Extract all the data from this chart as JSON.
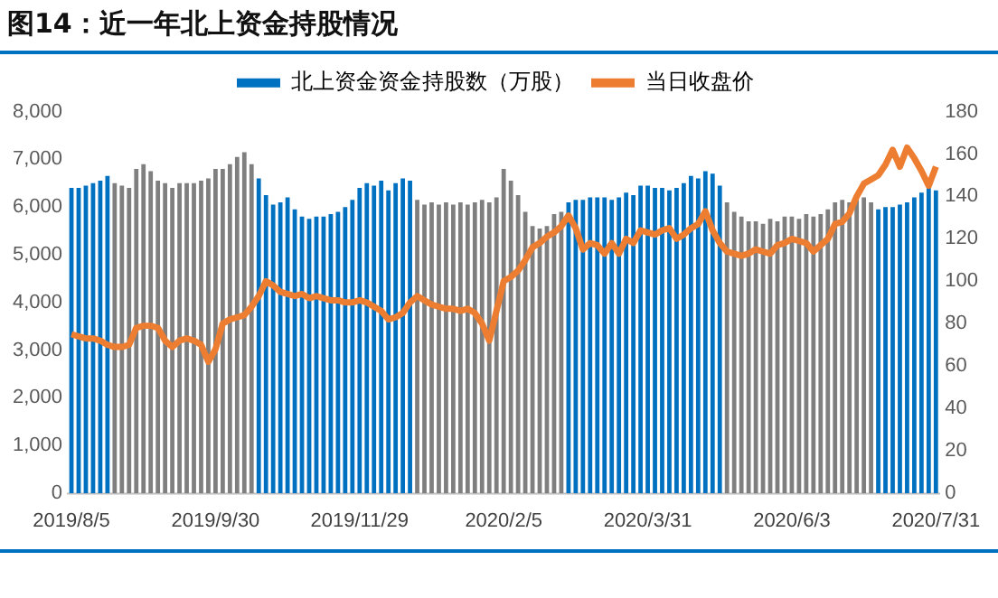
{
  "chart_data": {
    "type": "bar",
    "title": "图14：近一年北上资金持股情况",
    "categories": [
      "2019/8/5",
      null,
      null,
      null,
      null,
      null,
      null,
      null,
      null,
      null,
      null,
      null,
      null,
      null,
      null,
      null,
      null,
      null,
      null,
      null,
      "2019/9/30",
      null,
      null,
      null,
      null,
      null,
      null,
      null,
      null,
      null,
      null,
      null,
      null,
      null,
      null,
      null,
      null,
      null,
      null,
      null,
      "2019/11/29",
      null,
      null,
      null,
      null,
      null,
      null,
      null,
      null,
      null,
      null,
      null,
      null,
      null,
      null,
      null,
      null,
      null,
      null,
      null,
      "2020/2/5",
      null,
      null,
      null,
      null,
      null,
      null,
      null,
      null,
      null,
      null,
      null,
      null,
      null,
      null,
      null,
      null,
      null,
      null,
      null,
      "2020/3/31",
      null,
      null,
      null,
      null,
      null,
      null,
      null,
      null,
      null,
      null,
      null,
      null,
      null,
      null,
      null,
      null,
      null,
      null,
      null,
      "2020/6/3",
      null,
      null,
      null,
      null,
      null,
      null,
      null,
      null,
      null,
      null,
      null,
      null,
      null,
      null,
      null,
      null,
      null,
      null,
      null,
      "2020/7/31"
    ],
    "series": [
      {
        "name": "北上资金资金持股数（万股）",
        "color": "#0070c0",
        "colors": [
          "#0070c0",
          "#0070c0",
          "#0070c0",
          "#0070c0",
          "#0070c0",
          "#0070c0",
          "#7f7f7f",
          "#7f7f7f",
          "#7f7f7f",
          "#7f7f7f",
          "#7f7f7f",
          "#7f7f7f",
          "#7f7f7f",
          "#7f7f7f",
          "#7f7f7f",
          "#7f7f7f",
          "#7f7f7f",
          "#7f7f7f",
          "#7f7f7f",
          "#7f7f7f",
          "#7f7f7f",
          "#7f7f7f",
          "#7f7f7f",
          "#7f7f7f",
          "#7f7f7f",
          "#7f7f7f",
          "#0070c0",
          "#0070c0",
          "#0070c0",
          "#0070c0",
          "#0070c0",
          "#0070c0",
          "#0070c0",
          "#0070c0",
          "#0070c0",
          "#0070c0",
          "#0070c0",
          "#0070c0",
          "#0070c0",
          "#0070c0",
          "#0070c0",
          "#0070c0",
          "#0070c0",
          "#0070c0",
          "#0070c0",
          "#0070c0",
          "#0070c0",
          "#0070c0",
          "#7f7f7f",
          "#7f7f7f",
          "#7f7f7f",
          "#7f7f7f",
          "#7f7f7f",
          "#7f7f7f",
          "#7f7f7f",
          "#7f7f7f",
          "#7f7f7f",
          "#7f7f7f",
          "#7f7f7f",
          "#7f7f7f",
          "#7f7f7f",
          "#7f7f7f",
          "#7f7f7f",
          "#7f7f7f",
          "#7f7f7f",
          "#7f7f7f",
          "#7f7f7f",
          "#7f7f7f",
          "#7f7f7f",
          "#0070c0",
          "#0070c0",
          "#0070c0",
          "#0070c0",
          "#0070c0",
          "#0070c0",
          "#0070c0",
          "#0070c0",
          "#0070c0",
          "#0070c0",
          "#0070c0",
          "#0070c0",
          "#0070c0",
          "#0070c0",
          "#0070c0",
          "#0070c0",
          "#0070c0",
          "#0070c0",
          "#0070c0",
          "#0070c0",
          "#0070c0",
          "#0070c0",
          "#7f7f7f",
          "#7f7f7f",
          "#7f7f7f",
          "#7f7f7f",
          "#7f7f7f",
          "#7f7f7f",
          "#7f7f7f",
          "#7f7f7f",
          "#7f7f7f",
          "#7f7f7f",
          "#7f7f7f",
          "#7f7f7f",
          "#7f7f7f",
          "#7f7f7f",
          "#7f7f7f",
          "#7f7f7f",
          "#7f7f7f",
          "#7f7f7f",
          "#7f7f7f",
          "#7f7f7f",
          "#7f7f7f",
          "#0070c0",
          "#0070c0",
          "#0070c0",
          "#0070c0",
          "#0070c0",
          "#0070c0",
          "#0070c0",
          "#0070c0",
          "#0070c0"
        ],
        "values": [
          6400,
          6400,
          6450,
          6500,
          6550,
          6650,
          6500,
          6450,
          6400,
          6800,
          6900,
          6750,
          6550,
          6500,
          6400,
          6500,
          6500,
          6500,
          6550,
          6600,
          6800,
          6800,
          6900,
          7050,
          7150,
          6900,
          6600,
          6250,
          6050,
          6100,
          6200,
          5950,
          5800,
          5750,
          5800,
          5800,
          5850,
          5900,
          6000,
          6150,
          6400,
          6500,
          6450,
          6550,
          6350,
          6500,
          6600,
          6550,
          6150,
          6050,
          6100,
          6050,
          6100,
          6050,
          6100,
          6050,
          6100,
          6150,
          6100,
          6200,
          6800,
          6550,
          6250,
          5900,
          5600,
          5550,
          5600,
          5850,
          5900,
          6100,
          6150,
          6150,
          6200,
          6200,
          6200,
          6150,
          6200,
          6300,
          6250,
          6450,
          6450,
          6400,
          6400,
          6350,
          6400,
          6500,
          6650,
          6600,
          6750,
          6700,
          6450,
          6100,
          5900,
          5800,
          5700,
          5700,
          5650,
          5750,
          5700,
          5800,
          5800,
          5750,
          5850,
          5800,
          5850,
          5950,
          6100,
          6150,
          6100,
          6150,
          6200,
          6100,
          5950,
          6000,
          6000,
          6050,
          6100,
          6200,
          6300,
          6400,
          6350
        ]
      },
      {
        "name": "当日收盘价",
        "type": "line",
        "axis": "y2",
        "color": "#ed7d31",
        "values": [
          75,
          74,
          73,
          73,
          72,
          70,
          69,
          69,
          70,
          78,
          79,
          79,
          78,
          72,
          69,
          72,
          73,
          72,
          70,
          62,
          68,
          80,
          82,
          83,
          84,
          88,
          93,
          100,
          98,
          95,
          94,
          93,
          94,
          92,
          93,
          92,
          91,
          91,
          90,
          90,
          91,
          90,
          88,
          86,
          82,
          83,
          85,
          90,
          93,
          91,
          89,
          88,
          87,
          87,
          86,
          87,
          85,
          80,
          72,
          86,
          100,
          102,
          105,
          110,
          116,
          118,
          121,
          123,
          126,
          131,
          125,
          115,
          118,
          117,
          113,
          118,
          113,
          120,
          118,
          124,
          123,
          122,
          124,
          125,
          120,
          122,
          125,
          127,
          133,
          124,
          118,
          114,
          113,
          112,
          113,
          115,
          114,
          113,
          117,
          118,
          120,
          119,
          118,
          114,
          117,
          120,
          127,
          128,
          132,
          140,
          146,
          148,
          150,
          155,
          162,
          154,
          163,
          158,
          152,
          145,
          154
        ]
      }
    ],
    "ylim": [
      0,
      8000
    ],
    "yticks": [
      {
        "value": 0,
        "label": "0"
      },
      {
        "value": 1000,
        "label": "1,000"
      },
      {
        "value": 2000,
        "label": "2,000"
      },
      {
        "value": 3000,
        "label": "3,000"
      },
      {
        "value": 4000,
        "label": "4,000"
      },
      {
        "value": 5000,
        "label": "5,000"
      },
      {
        "value": 6000,
        "label": "6,000"
      },
      {
        "value": 7000,
        "label": "7,000"
      },
      {
        "value": 8000,
        "label": "8,000"
      }
    ],
    "y2lim": [
      0,
      180
    ],
    "y2ticks": [
      0,
      20,
      40,
      60,
      80,
      100,
      120,
      140,
      160,
      180
    ],
    "legend": "top",
    "grid": false,
    "marker": "none",
    "line_style": "solid"
  }
}
